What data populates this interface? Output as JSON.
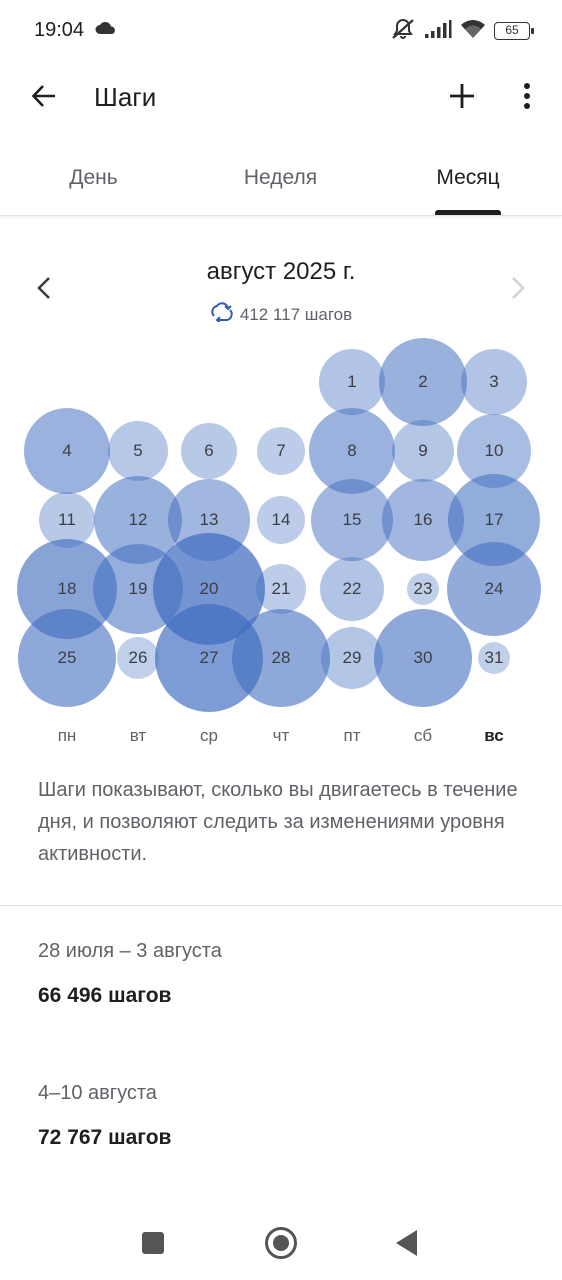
{
  "status_bar": {
    "time": "19:04",
    "battery": "65",
    "icons": [
      "cloud-icon",
      "mute-icon",
      "signal-icon",
      "wifi-icon",
      "battery-icon"
    ]
  },
  "app_bar": {
    "title": "Шаги",
    "icons": [
      "back-arrow-icon",
      "plus-icon",
      "more-vert-icon"
    ]
  },
  "tabs": [
    {
      "label": "День"
    },
    {
      "label": "Неделя"
    },
    {
      "label": "Месяц"
    }
  ],
  "selected_tab": "Месяц",
  "month": {
    "title": "август 2025 г.",
    "total_steps": "412 117 шагов"
  },
  "calendar": {
    "accent_color": "#3f6cbf",
    "weekdays": [
      {
        "label": "пн",
        "bold": false
      },
      {
        "label": "вт",
        "bold": false
      },
      {
        "label": "ср",
        "bold": false
      },
      {
        "label": "чт",
        "bold": false
      },
      {
        "label": "пт",
        "bold": false
      },
      {
        "label": "сб",
        "bold": false
      },
      {
        "label": "вс",
        "bold": true
      }
    ],
    "days": [
      {
        "day": 1,
        "col": 4,
        "row": 0,
        "level": 0.33
      },
      {
        "day": 2,
        "col": 5,
        "row": 0,
        "level": 0.85
      },
      {
        "day": 3,
        "col": 6,
        "row": 0,
        "level": 0.33
      },
      {
        "day": 4,
        "col": 0,
        "row": 1,
        "level": 0.8
      },
      {
        "day": 5,
        "col": 1,
        "row": 1,
        "level": 0.25
      },
      {
        "day": 6,
        "col": 2,
        "row": 1,
        "level": 0.2
      },
      {
        "day": 7,
        "col": 3,
        "row": 1,
        "level": 0.1
      },
      {
        "day": 8,
        "col": 4,
        "row": 1,
        "level": 0.8
      },
      {
        "day": 9,
        "col": 5,
        "row": 1,
        "level": 0.28
      },
      {
        "day": 10,
        "col": 6,
        "row": 1,
        "level": 0.5
      },
      {
        "day": 11,
        "col": 0,
        "row": 2,
        "level": 0.2
      },
      {
        "day": 12,
        "col": 1,
        "row": 2,
        "level": 0.85
      },
      {
        "day": 13,
        "col": 2,
        "row": 2,
        "level": 0.7
      },
      {
        "day": 14,
        "col": 3,
        "row": 2,
        "level": 0.1
      },
      {
        "day": 15,
        "col": 4,
        "row": 2,
        "level": 0.7
      },
      {
        "day": 16,
        "col": 5,
        "row": 2,
        "level": 0.7
      },
      {
        "day": 17,
        "col": 6,
        "row": 2,
        "level": 0.95
      },
      {
        "day": 18,
        "col": 0,
        "row": 3,
        "level": 1.2
      },
      {
        "day": 19,
        "col": 1,
        "row": 3,
        "level": 0.9
      },
      {
        "day": 20,
        "col": 2,
        "row": 3,
        "level": 1.6
      },
      {
        "day": 21,
        "col": 3,
        "row": 3,
        "level": 0.12
      },
      {
        "day": 22,
        "col": 4,
        "row": 3,
        "level": 0.3
      },
      {
        "day": 23,
        "col": 5,
        "row": 3,
        "level": 0.01
      },
      {
        "day": 24,
        "col": 6,
        "row": 3,
        "level": 1.0
      },
      {
        "day": 25,
        "col": 0,
        "row": 4,
        "level": 1.1
      },
      {
        "day": 26,
        "col": 1,
        "row": 4,
        "level": 0.05
      },
      {
        "day": 27,
        "col": 2,
        "row": 4,
        "level": 1.45
      },
      {
        "day": 28,
        "col": 3,
        "row": 4,
        "level": 1.1
      },
      {
        "day": 29,
        "col": 4,
        "row": 4,
        "level": 0.28
      },
      {
        "day": 30,
        "col": 5,
        "row": 4,
        "level": 1.1
      },
      {
        "day": 31,
        "col": 6,
        "row": 4,
        "level": 0.01
      }
    ]
  },
  "description": "Шаги показывают, сколько вы двигаетесь в течение дня, и позволяют следить за изменениями уровня активности.",
  "weeks": [
    {
      "range": "28 июля – 3 августа",
      "steps": "66 496 шагов"
    },
    {
      "range": "4–10 августа",
      "steps": "72 767 шагов"
    }
  ],
  "nav_bar": {
    "icons": [
      "recents-square-icon",
      "home-circle-icon",
      "back-triangle-icon"
    ]
  }
}
